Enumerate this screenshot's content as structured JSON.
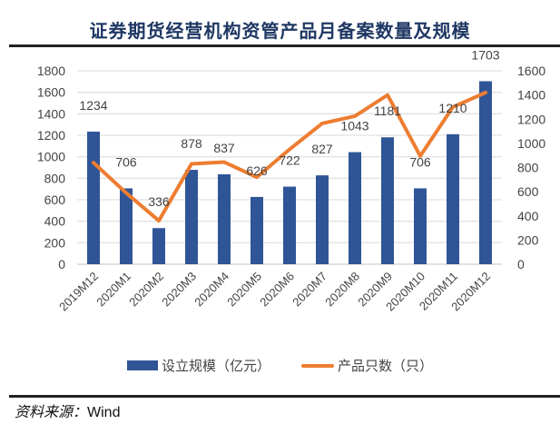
{
  "chart_data": {
    "type": "bar+line",
    "title": "证券期货经营机构资管产品月备案数量及规模",
    "categories": [
      "2019M12",
      "2020M1",
      "2020M2",
      "2020M3",
      "2020M4",
      "2020M5",
      "2020M6",
      "2020M7",
      "2020M8",
      "2020M9",
      "2020M10",
      "2020M11",
      "2020M12"
    ],
    "series": [
      {
        "name": "设立规模（亿元）",
        "type": "bar",
        "axis": "left",
        "color": "#2f5597",
        "values": [
          1234,
          706,
          336,
          878,
          837,
          626,
          722,
          827,
          1043,
          1181,
          706,
          1210,
          1703
        ]
      },
      {
        "name": "产品只数（只）",
        "type": "line",
        "axis": "right",
        "color": "#ed7d31",
        "values": [
          840,
          590,
          360,
          830,
          845,
          720,
          950,
          1165,
          1225,
          1400,
          895,
          1300,
          1420
        ]
      }
    ],
    "y_left": {
      "range": [
        0,
        1800
      ],
      "ticks": [
        0,
        200,
        400,
        600,
        800,
        1000,
        1200,
        1400,
        1600,
        1800
      ]
    },
    "y_right": {
      "range": [
        0,
        1600
      ],
      "ticks": [
        0,
        200,
        400,
        600,
        800,
        1000,
        1200,
        1400,
        1600
      ]
    },
    "grid": true,
    "legend_position": "bottom"
  },
  "source": {
    "label": "资料来源：",
    "value": "Wind"
  }
}
